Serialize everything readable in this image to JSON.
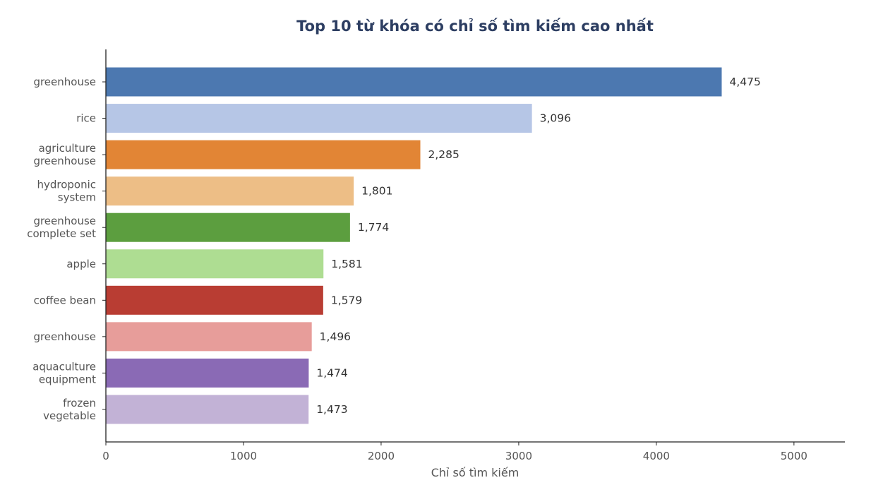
{
  "chart_data": {
    "type": "bar",
    "orientation": "horizontal",
    "title": "Top 10 từ khóa có chỉ số tìm kiếm cao nhất",
    "xlabel": "Chỉ số tìm kiếm",
    "ylabel": "",
    "xlim": [
      0,
      5370
    ],
    "xticks": [
      "0",
      "1000",
      "2000",
      "3000",
      "4000",
      "5000"
    ],
    "xtick_values": [
      0,
      1000,
      2000,
      3000,
      4000,
      5000
    ],
    "grid": false,
    "categories": [
      [
        "greenhouse"
      ],
      [
        "rice"
      ],
      [
        "agriculture",
        "greenhouse"
      ],
      [
        "hydroponic",
        "system"
      ],
      [
        "greenhouse",
        "complete set"
      ],
      [
        "apple"
      ],
      [
        "coffee bean"
      ],
      [
        "greenhouse "
      ],
      [
        "aquaculture",
        "equipment"
      ],
      [
        "frozen",
        "vegetable"
      ]
    ],
    "values": [
      4475,
      3096,
      2285,
      1801,
      1774,
      1581,
      1579,
      1496,
      1474,
      1473
    ],
    "value_labels": [
      "4,475",
      "3,096",
      "2,285",
      "1,801",
      "1,774",
      "1,581",
      "1,579",
      "1,496",
      "1,474",
      "1,473"
    ],
    "colors": [
      "#4c78b0",
      "#b6c6e6",
      "#e28535",
      "#edbe86",
      "#5c9e3f",
      "#aedd92",
      "#b93d33",
      "#e79d9a",
      "#8a6ab5",
      "#c2b2d6"
    ]
  },
  "style": {
    "title_color": "#2d3e62",
    "label_color": "#555555",
    "value_color": "#333333",
    "axis_color": "#222222"
  }
}
